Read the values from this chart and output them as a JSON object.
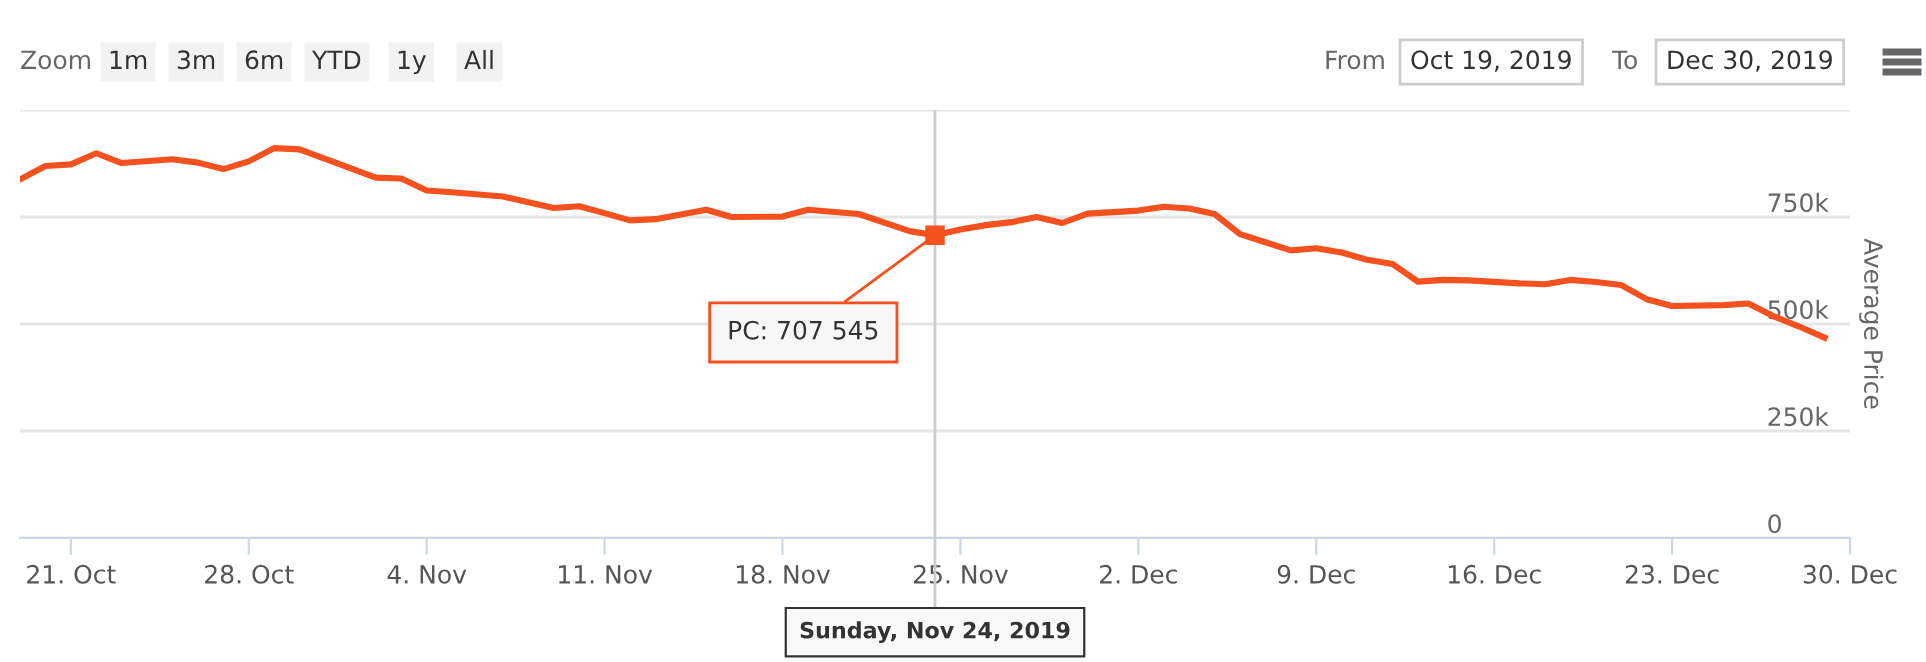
{
  "chart_data": {
    "type": "line",
    "ylabel": "Average Price",
    "x": [
      "2019-10-19",
      "2019-10-20",
      "2019-10-21",
      "2019-10-22",
      "2019-10-23",
      "2019-10-25",
      "2019-10-26",
      "2019-10-27",
      "2019-10-28",
      "2019-10-29",
      "2019-10-30",
      "2019-11-02",
      "2019-11-03",
      "2019-11-04",
      "2019-11-05",
      "2019-11-07",
      "2019-11-09",
      "2019-11-10",
      "2019-11-11",
      "2019-11-12",
      "2019-11-13",
      "2019-11-15",
      "2019-11-16",
      "2019-11-18",
      "2019-11-19",
      "2019-11-21",
      "2019-11-23",
      "2019-11-24",
      "2019-11-25",
      "2019-11-26",
      "2019-11-27",
      "2019-11-28",
      "2019-11-29",
      "2019-11-30",
      "2019-12-02",
      "2019-12-03",
      "2019-12-04",
      "2019-12-05",
      "2019-12-06",
      "2019-12-07",
      "2019-12-08",
      "2019-12-09",
      "2019-12-10",
      "2019-12-11",
      "2019-12-12",
      "2019-12-13",
      "2019-12-14",
      "2019-12-15",
      "2019-12-17",
      "2019-12-18",
      "2019-12-19",
      "2019-12-20",
      "2019-12-21",
      "2019-12-22",
      "2019-12-23",
      "2019-12-25",
      "2019-12-26",
      "2019-12-27",
      "2019-12-28",
      "2019-12-29"
    ],
    "series": [
      {
        "color": "#f4511e",
        "values": [
          838000,
          869000,
          873000,
          899000,
          876000,
          885000,
          877000,
          862000,
          880000,
          911000,
          908000,
          842000,
          840000,
          812000,
          808000,
          798000,
          771000,
          775000,
          759000,
          742000,
          745000,
          767000,
          750000,
          751000,
          767000,
          757000,
          717000,
          707545,
          721000,
          731000,
          738000,
          750000,
          736000,
          758000,
          765000,
          774000,
          770000,
          757000,
          710000,
          691000,
          672000,
          677000,
          667000,
          650000,
          640000,
          599000,
          603000,
          602000,
          595000,
          593000,
          603000,
          598000,
          591000,
          558000,
          542000,
          544000,
          548000,
          518000,
          494000,
          468000
        ]
      }
    ],
    "xlim": [
      "2019-10-19",
      "2019-12-30"
    ],
    "xticks": [
      {
        "value": "2019-10-21",
        "label": "21. Oct"
      },
      {
        "value": "2019-10-28",
        "label": "28. Oct"
      },
      {
        "value": "2019-11-04",
        "label": "4. Nov"
      },
      {
        "value": "2019-11-11",
        "label": "11. Nov"
      },
      {
        "value": "2019-11-18",
        "label": "18. Nov"
      },
      {
        "value": "2019-11-25",
        "label": "25. Nov"
      },
      {
        "value": "2019-12-02",
        "label": "2. Dec"
      },
      {
        "value": "2019-12-09",
        "label": "9. Dec"
      },
      {
        "value": "2019-12-16",
        "label": "16. Dec"
      },
      {
        "value": "2019-12-23",
        "label": "23. Dec"
      },
      {
        "value": "2019-12-30",
        "label": "30. Dec"
      }
    ],
    "ylim": [
      0,
      1000000
    ],
    "yticks": [
      {
        "value": 0,
        "label": "0"
      },
      {
        "value": 250000,
        "label": "250k"
      },
      {
        "value": 500000,
        "label": "500k"
      },
      {
        "value": 750000,
        "label": "750k"
      },
      {
        "value": 1000000,
        "label": null
      }
    ],
    "grid": "y",
    "marker": "none",
    "line_style": "solid",
    "legend": false,
    "ref_lines": [
      {
        "axis": "x",
        "value": "2019-11-24",
        "label": "Sunday, Nov 24, 2019",
        "color": "#cccccc"
      }
    ],
    "annotations": [
      {
        "text": "PC: 707 545",
        "x": "2019-11-24",
        "y": 707545
      },
      "Zoom",
      "1m",
      "3m",
      "6m",
      "YTD",
      "1y",
      "All",
      "From",
      "Oct 19, 2019",
      "To",
      "Dec 30, 2019"
    ]
  }
}
